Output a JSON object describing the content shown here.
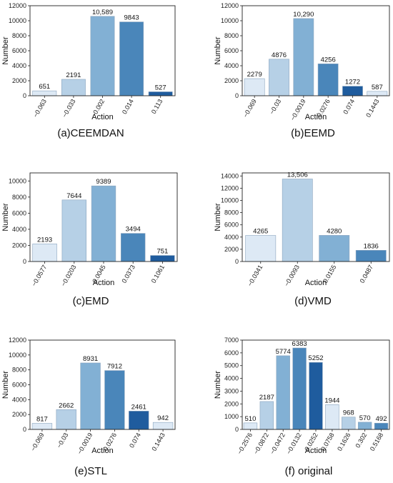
{
  "chart_data": [
    {
      "type": "bar",
      "caption": "(a)CEEMDAN",
      "xlabel": "Action",
      "ylabel": "Number",
      "ylim": [
        0,
        12000
      ],
      "yticks": [
        0,
        2000,
        4000,
        6000,
        8000,
        10000,
        12000
      ],
      "categories": [
        "−0.063",
        "−0.033",
        "−0.002",
        "0.014",
        "0.113"
      ],
      "values": [
        651,
        2191,
        10589,
        9843,
        527
      ],
      "value_labels": [
        "651",
        "2191",
        "10,589",
        "9843",
        "527"
      ],
      "colors": [
        "#dde9f5",
        "#b6d0e6",
        "#82b0d4",
        "#4a86ba",
        "#1f5c9e"
      ]
    },
    {
      "type": "bar",
      "caption": "(b)EEMD",
      "xlabel": "Action",
      "ylabel": "Number",
      "ylim": [
        0,
        12000
      ],
      "yticks": [
        0,
        2000,
        4000,
        6000,
        8000,
        10000,
        12000
      ],
      "categories": [
        "−0.069",
        "−0.03",
        "−0.0019",
        "0.0276",
        "0.074",
        "0.1443"
      ],
      "values": [
        2279,
        4876,
        10290,
        4256,
        1272,
        587
      ],
      "value_labels": [
        "2279",
        "4876",
        "10,290",
        "4256",
        "1272",
        "587"
      ],
      "colors": [
        "#dde9f5",
        "#b6d0e6",
        "#82b0d4",
        "#4a86ba",
        "#1f5c9e",
        "#dde9f5"
      ]
    },
    {
      "type": "bar",
      "caption": "(c)EMD",
      "xlabel": "Action",
      "ylabel": "Number",
      "ylim": [
        0,
        11000
      ],
      "yticks": [
        0,
        2000,
        4000,
        6000,
        8000,
        10000
      ],
      "categories": [
        "−0.0577",
        "−0.0203",
        "0.0045",
        "0.0373",
        "0.1061"
      ],
      "values": [
        2193,
        7644,
        9389,
        3494,
        751
      ],
      "value_labels": [
        "2193",
        "7644",
        "9389",
        "3494",
        "751"
      ],
      "colors": [
        "#dde9f5",
        "#b6d0e6",
        "#82b0d4",
        "#4a86ba",
        "#1f5c9e"
      ]
    },
    {
      "type": "bar",
      "caption": "(d)VMD",
      "xlabel": "Action",
      "ylabel": "Number",
      "ylim": [
        0,
        14500
      ],
      "yticks": [
        0,
        2000,
        4000,
        6000,
        8000,
        10000,
        12000,
        14000
      ],
      "categories": [
        "−0.0341",
        "−0.0093",
        "0.0155",
        "0.0487"
      ],
      "values": [
        4265,
        13506,
        4280,
        1836
      ],
      "value_labels": [
        "4265",
        "13,506",
        "4280",
        "1836"
      ],
      "colors": [
        "#dde9f5",
        "#b6d0e6",
        "#82b0d4",
        "#4a86ba"
      ]
    },
    {
      "type": "bar",
      "caption": "(e)STL",
      "xlabel": "Action",
      "ylabel": "Number",
      "ylim": [
        0,
        12000
      ],
      "yticks": [
        0,
        2000,
        4000,
        6000,
        8000,
        10000,
        12000
      ],
      "categories": [
        "−0.069",
        "−0.03",
        "−0.0019",
        "0.0276",
        "0.074",
        "0.1443"
      ],
      "values": [
        817,
        2662,
        8931,
        7912,
        2461,
        942
      ],
      "value_labels": [
        "817",
        "2662",
        "8931",
        "7912",
        "2461",
        "942"
      ],
      "colors": [
        "#dde9f5",
        "#b6d0e6",
        "#82b0d4",
        "#4a86ba",
        "#1f5c9e",
        "#dde9f5"
      ]
    },
    {
      "type": "bar",
      "caption": "(f) original",
      "xlabel": "Action",
      "ylabel": "Number",
      "ylim": [
        0,
        7000
      ],
      "yticks": [
        0,
        1000,
        2000,
        3000,
        4000,
        5000,
        6000,
        7000
      ],
      "categories": [
        "−0.2576",
        "−0.0872",
        "−0.0472",
        "−0.0132",
        "0.0252",
        "0.0758",
        "0.1626",
        "0.302",
        "0.5168"
      ],
      "values": [
        510,
        2187,
        5774,
        6383,
        5252,
        1944,
        968,
        570,
        492
      ],
      "value_labels": [
        "510",
        "2187",
        "5774",
        "6383",
        "5252",
        "1944",
        "968",
        "570",
        "492"
      ],
      "colors": [
        "#dde9f5",
        "#b6d0e6",
        "#82b0d4",
        "#4a86ba",
        "#1f5c9e",
        "#dde9f5",
        "#b6d0e6",
        "#82b0d4",
        "#4a86ba"
      ]
    }
  ]
}
